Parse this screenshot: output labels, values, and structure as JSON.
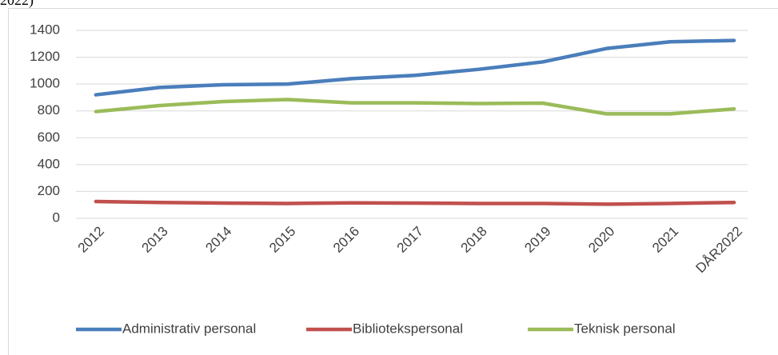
{
  "chart_data": {
    "type": "line",
    "title": "2022)",
    "categories": [
      "2012",
      "2013",
      "2014",
      "2015",
      "2016",
      "2017",
      "2018",
      "2019",
      "2020",
      "2021",
      "DÅR2022"
    ],
    "series": [
      {
        "name": "Administrativ personal",
        "color": "#4a7ebb",
        "values": [
          920,
          975,
          995,
          1000,
          1040,
          1065,
          1110,
          1165,
          1265,
          1315,
          1325
        ]
      },
      {
        "name": "Bibliotekspersonal",
        "color": "#c0504d",
        "values": [
          125,
          118,
          113,
          110,
          115,
          113,
          110,
          110,
          105,
          110,
          118
        ]
      },
      {
        "name": "Teknisk personal",
        "color": "#9bbb59",
        "values": [
          795,
          840,
          870,
          885,
          860,
          860,
          855,
          858,
          778,
          778,
          815
        ]
      }
    ],
    "ylim": [
      0,
      1400
    ],
    "yticks": [
      0,
      200,
      400,
      600,
      800,
      1000,
      1200,
      1400
    ],
    "grid": true,
    "legend": "bottom"
  }
}
